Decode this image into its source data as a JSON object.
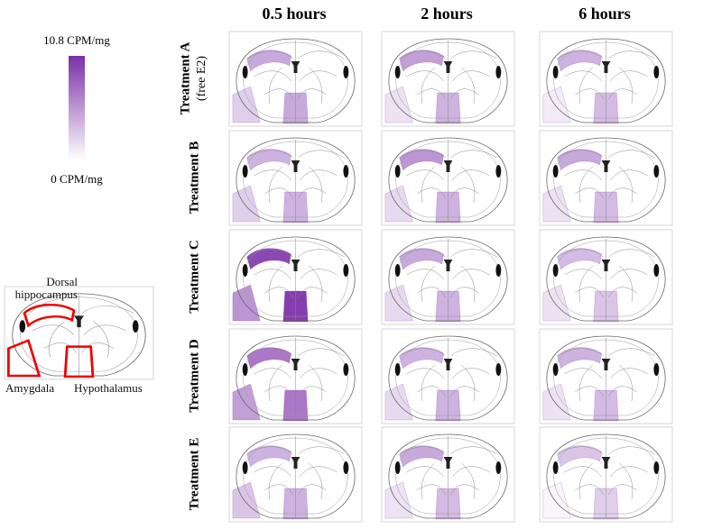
{
  "chart_data": {
    "type": "brain-map",
    "color": "#7b2fa8",
    "clim": [
      0,
      10.8
    ],
    "cticks": [
      {
        "value": 0,
        "label": "0 CPM/mg"
      },
      {
        "value": 10.8,
        "label": "10.8 CPM/mg"
      }
    ],
    "columns": [
      "0.5 hours",
      "2 hours",
      "6 hours"
    ],
    "regions": [
      "Dorsal hippocampus",
      "Amygdala",
      "Hypothalamus"
    ],
    "series": [
      {
        "name": "Treatment A",
        "note": "(free E2)",
        "values": [
          [
            4.5,
            2.5,
            4.5
          ],
          [
            5,
            1.5,
            4
          ],
          [
            4,
            1,
            3.5
          ]
        ]
      },
      {
        "name": "Treatment B",
        "values": [
          [
            4,
            2.5,
            4
          ],
          [
            5.5,
            2,
            4
          ],
          [
            4.5,
            1.5,
            3.5
          ]
        ]
      },
      {
        "name": "Treatment C",
        "values": [
          [
            9.5,
            5.5,
            10
          ],
          [
            4.5,
            2,
            4
          ],
          [
            3.5,
            1.5,
            3
          ]
        ]
      },
      {
        "name": "Treatment D",
        "values": [
          [
            7,
            5,
            7
          ],
          [
            4,
            2,
            4
          ],
          [
            4,
            1.5,
            3.5
          ]
        ]
      },
      {
        "name": "Treatment E",
        "values": [
          [
            4,
            3,
            4
          ],
          [
            4.5,
            1.5,
            3.5
          ],
          [
            3,
            0.5,
            2.5
          ]
        ]
      }
    ]
  }
}
